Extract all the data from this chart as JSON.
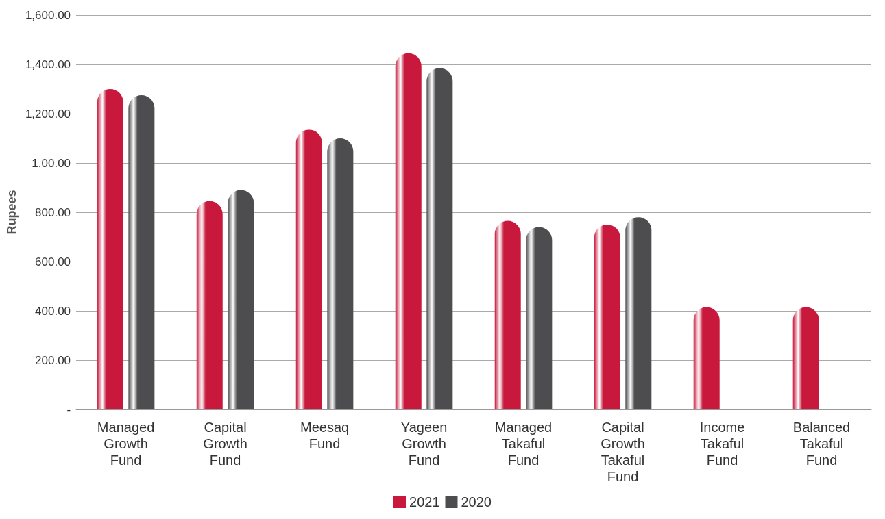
{
  "chart_data": {
    "type": "bar",
    "ylabel": "Rupees",
    "categories": [
      "Managed Growth Fund",
      "Capital Growth Fund",
      "Meesaq Fund",
      "Yageen Growth Fund",
      "Managed Takaful Fund",
      "Capital Growth Takaful Fund",
      "Income Takaful Fund",
      "Balanced Takaful Fund"
    ],
    "series": [
      {
        "name": "2021",
        "color": "#c8193c",
        "values": [
          1300,
          845,
          1135,
          1445,
          765,
          750,
          415,
          415
        ]
      },
      {
        "name": "2020",
        "color": "#4d4d4f",
        "values": [
          1275,
          890,
          1100,
          1385,
          740,
          780,
          null,
          null
        ]
      }
    ],
    "ylim": [
      0,
      1600
    ],
    "yticks": [
      {
        "value": 0,
        "label": "-"
      },
      {
        "value": 200,
        "label": "200.00"
      },
      {
        "value": 400,
        "label": "400.00"
      },
      {
        "value": 600,
        "label": "600.00"
      },
      {
        "value": 800,
        "label": "800.00"
      },
      {
        "value": 1000,
        "label": "1,00.00"
      },
      {
        "value": 1200,
        "label": "1,200.00"
      },
      {
        "value": 1400,
        "label": "1,400.00"
      },
      {
        "value": 1600,
        "label": "1,600.00"
      }
    ],
    "grid": true,
    "legend": "bottom"
  }
}
